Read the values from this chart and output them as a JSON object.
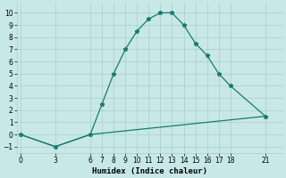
{
  "line1_x": [
    0,
    3,
    6,
    7,
    8,
    9,
    10,
    11,
    12,
    13,
    14,
    15,
    16,
    17,
    18,
    21
  ],
  "line1_y": [
    0,
    -1,
    0,
    2.5,
    5,
    7,
    8.5,
    9.5,
    10,
    10,
    9,
    7.5,
    6.5,
    5,
    4,
    1.5
  ],
  "line2_x": [
    0,
    3,
    6,
    21
  ],
  "line2_y": [
    0,
    -1,
    0,
    1.5
  ],
  "color": "#1a7a6e",
  "bg_color": "#c8e8e8",
  "grid_color": "#a8cece",
  "xlabel": "Humidex (Indice chaleur)",
  "xticks": [
    0,
    3,
    6,
    7,
    8,
    9,
    10,
    11,
    12,
    13,
    14,
    15,
    16,
    17,
    18,
    21
  ],
  "yticks": [
    -1,
    0,
    1,
    2,
    3,
    4,
    5,
    6,
    7,
    8,
    9,
    10
  ],
  "ylim": [
    -1.5,
    10.8
  ],
  "xlim": [
    -0.3,
    22.5
  ]
}
